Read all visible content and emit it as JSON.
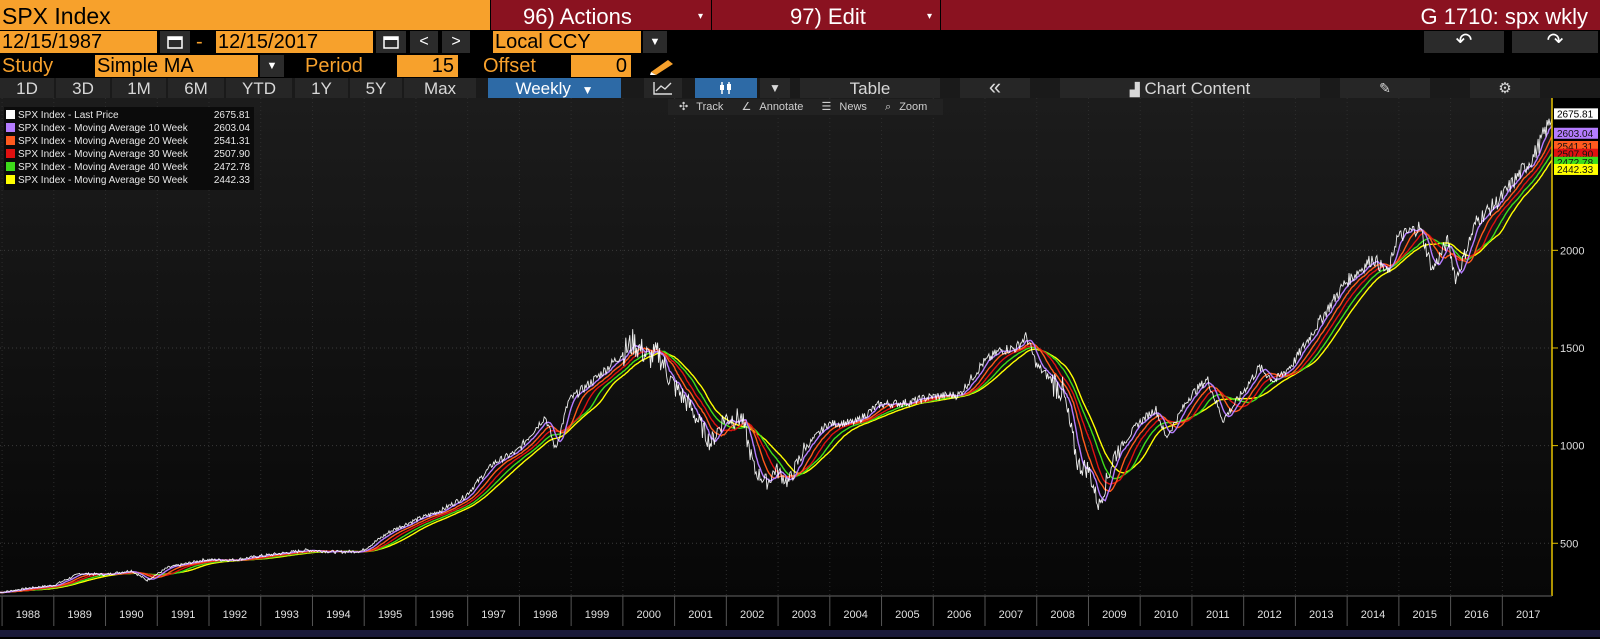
{
  "header": {
    "title": "SPX Index",
    "actions_label": "96) Actions",
    "edit_label": "97) Edit",
    "page_title": "G 1710: spx wkly"
  },
  "range": {
    "start": "12/15/1987",
    "dash": "-",
    "end": "12/15/2017",
    "currency": "Local CCY"
  },
  "study": {
    "label": "Study",
    "value": "Simple MA",
    "period_label": "Period",
    "period_value": "15",
    "offset_label": "Offset",
    "offset_value": "0"
  },
  "toolbar": {
    "periods": [
      "1D",
      "3D",
      "1M",
      "6M",
      "YTD",
      "1Y",
      "5Y",
      "Max"
    ],
    "frequency": "Weekly",
    "table_label": "Table",
    "collapse_label": "«",
    "chart_content_label": "Chart Content"
  },
  "chart_tools": {
    "track": "Track",
    "annotate": "Annotate",
    "news": "News",
    "zoom": "Zoom"
  },
  "colors": {
    "accent_orange": "#f7a12c",
    "menu_red": "#8a1220",
    "selected_blue": "#2d6aa6",
    "axis_yellow": "#e6c200"
  },
  "chart_data": {
    "type": "line",
    "legend": [
      {
        "name": "SPX Index - Last Price",
        "value": "2675.81",
        "color": "#ffffff"
      },
      {
        "name": "SPX Index - Moving Average 10 Week",
        "value": "2603.04",
        "color": "#b57cff"
      },
      {
        "name": "SPX Index - Moving Average 20 Week",
        "value": "2541.31",
        "color": "#ff5a1e"
      },
      {
        "name": "SPX Index - Moving Average 30 Week",
        "value": "2507.90",
        "color": "#e01010"
      },
      {
        "name": "SPX Index - Moving Average 40 Week",
        "value": "2472.78",
        "color": "#3ddc1a"
      },
      {
        "name": "SPX Index - Moving Average 50 Week",
        "value": "2442.33",
        "color": "#ffff00"
      }
    ],
    "x_ticks": [
      "1988",
      "1989",
      "1990",
      "1991",
      "1992",
      "1993",
      "1994",
      "1995",
      "1996",
      "1997",
      "1998",
      "1999",
      "2000",
      "2001",
      "2002",
      "2003",
      "2004",
      "2005",
      "2006",
      "2007",
      "2008",
      "2009",
      "2010",
      "2011",
      "2012",
      "2013",
      "2014",
      "2015",
      "2016",
      "2017"
    ],
    "y_ticks": [
      500,
      1000,
      1500,
      2000
    ],
    "ylim": [
      230,
      2780
    ],
    "xlim": [
      1987.96,
      2017.96
    ],
    "price_points": [
      [
        1987.96,
        248
      ],
      [
        1988.5,
        270
      ],
      [
        1989.0,
        285
      ],
      [
        1989.5,
        345
      ],
      [
        1990.0,
        340
      ],
      [
        1990.5,
        360
      ],
      [
        1990.8,
        310
      ],
      [
        1991.2,
        375
      ],
      [
        1991.9,
        415
      ],
      [
        1992.5,
        415
      ],
      [
        1993.0,
        435
      ],
      [
        1993.9,
        465
      ],
      [
        1994.5,
        455
      ],
      [
        1994.95,
        460
      ],
      [
        1995.5,
        560
      ],
      [
        1995.95,
        615
      ],
      [
        1996.5,
        670
      ],
      [
        1996.95,
        740
      ],
      [
        1997.5,
        910
      ],
      [
        1997.95,
        970
      ],
      [
        1998.5,
        1150
      ],
      [
        1998.7,
        980
      ],
      [
        1998.95,
        1230
      ],
      [
        1999.5,
        1350
      ],
      [
        1999.95,
        1460
      ],
      [
        2000.2,
        1530
      ],
      [
        2000.5,
        1450
      ],
      [
        2000.7,
        1470
      ],
      [
        2000.95,
        1320
      ],
      [
        2001.3,
        1200
      ],
      [
        2001.7,
        1010
      ],
      [
        2001.95,
        1140
      ],
      [
        2002.3,
        1140
      ],
      [
        2002.55,
        870
      ],
      [
        2002.8,
        810
      ],
      [
        2002.95,
        880
      ],
      [
        2003.2,
        810
      ],
      [
        2003.5,
        980
      ],
      [
        2003.95,
        1110
      ],
      [
        2004.5,
        1120
      ],
      [
        2004.95,
        1210
      ],
      [
        2005.5,
        1220
      ],
      [
        2005.95,
        1250
      ],
      [
        2006.5,
        1260
      ],
      [
        2006.95,
        1420
      ],
      [
        2007.3,
        1490
      ],
      [
        2007.6,
        1500
      ],
      [
        2007.8,
        1560
      ],
      [
        2008.0,
        1410
      ],
      [
        2008.5,
        1280
      ],
      [
        2008.8,
        900
      ],
      [
        2009.0,
        880
      ],
      [
        2009.2,
        690
      ],
      [
        2009.5,
        950
      ],
      [
        2009.95,
        1110
      ],
      [
        2010.3,
        1190
      ],
      [
        2010.5,
        1040
      ],
      [
        2010.95,
        1250
      ],
      [
        2011.3,
        1340
      ],
      [
        2011.6,
        1130
      ],
      [
        2011.95,
        1260
      ],
      [
        2012.3,
        1400
      ],
      [
        2012.6,
        1330
      ],
      [
        2012.95,
        1420
      ],
      [
        2013.5,
        1650
      ],
      [
        2013.95,
        1830
      ],
      [
        2014.5,
        1960
      ],
      [
        2014.8,
        1880
      ],
      [
        2014.95,
        2060
      ],
      [
        2015.4,
        2120
      ],
      [
        2015.65,
        1900
      ],
      [
        2015.95,
        2050
      ],
      [
        2016.1,
        1850
      ],
      [
        2016.5,
        2150
      ],
      [
        2016.95,
        2260
      ],
      [
        2017.3,
        2380
      ],
      [
        2017.6,
        2480
      ],
      [
        2017.95,
        2675.81
      ]
    ]
  }
}
